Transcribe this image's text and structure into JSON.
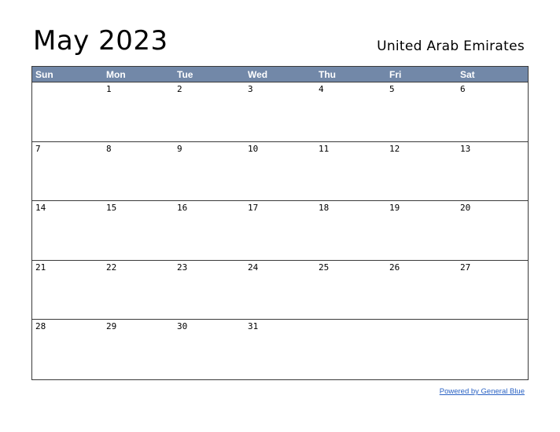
{
  "header": {
    "title": "May 2023",
    "country": "United Arab Emirates"
  },
  "calendar": {
    "weekdays": [
      "Sun",
      "Mon",
      "Tue",
      "Wed",
      "Thu",
      "Fri",
      "Sat"
    ],
    "weeks": [
      [
        "",
        "1",
        "2",
        "3",
        "4",
        "5",
        "6"
      ],
      [
        "7",
        "8",
        "9",
        "10",
        "11",
        "12",
        "13"
      ],
      [
        "14",
        "15",
        "16",
        "17",
        "18",
        "19",
        "20"
      ],
      [
        "21",
        "22",
        "23",
        "24",
        "25",
        "26",
        "27"
      ],
      [
        "28",
        "29",
        "30",
        "31",
        "",
        "",
        ""
      ]
    ]
  },
  "colors": {
    "header_bg": "#7288a8",
    "link": "#2a62c4"
  },
  "footer": {
    "link_text": "Powered by General Blue"
  }
}
